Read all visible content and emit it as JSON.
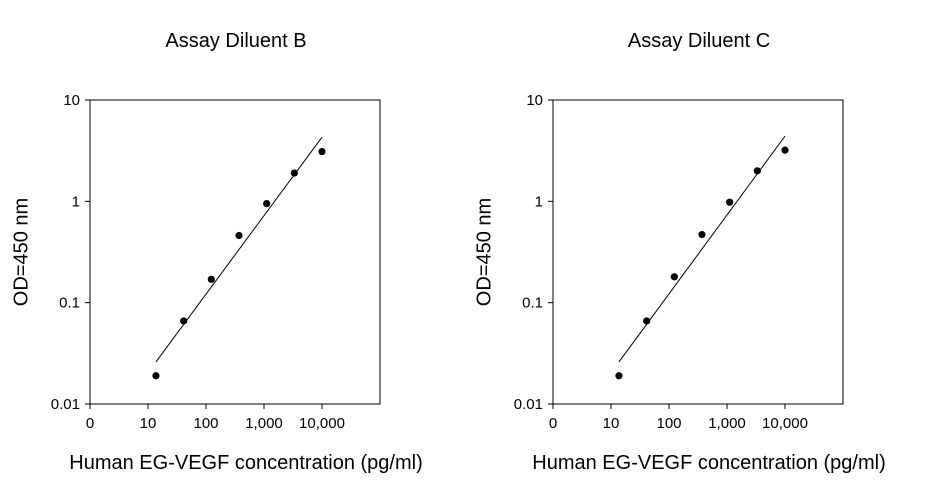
{
  "chart_data": [
    {
      "type": "scatter",
      "title": "Assay Diluent B",
      "xlabel": "Human EG-VEGF concentration (pg/ml)",
      "ylabel": "OD=450 nm",
      "x_scale": "log",
      "y_scale": "log",
      "xlim": [
        1,
        100000
      ],
      "ylim": [
        0.01,
        10
      ],
      "x_tick_labels": [
        "0",
        "10",
        "100",
        "1,000",
        "10,000"
      ],
      "y_tick_labels": [
        "0.01",
        "0.1",
        "1",
        "10"
      ],
      "grid": false,
      "series": [
        {
          "points": [
            {
              "x": 13.7,
              "y": 0.019
            },
            {
              "x": 41.2,
              "y": 0.066
            },
            {
              "x": 123.5,
              "y": 0.17
            },
            {
              "x": 370.4,
              "y": 0.46
            },
            {
              "x": 1111,
              "y": 0.95
            },
            {
              "x": 3333,
              "y": 1.9
            },
            {
              "x": 10000,
              "y": 3.1
            }
          ]
        }
      ],
      "fit_line": [
        {
          "x": 13.7,
          "y": 0.026
        },
        {
          "x": 10000,
          "y": 4.3
        }
      ]
    },
    {
      "type": "scatter",
      "title": "Assay Diluent C",
      "xlabel": "Human EG-VEGF concentration (pg/ml)",
      "ylabel": "OD=450 nm",
      "x_scale": "log",
      "y_scale": "log",
      "xlim": [
        1,
        100000
      ],
      "ylim": [
        0.01,
        10
      ],
      "x_tick_labels": [
        "0",
        "10",
        "100",
        "1,000",
        "10,000"
      ],
      "y_tick_labels": [
        "0.01",
        "0.1",
        "1",
        "10"
      ],
      "grid": false,
      "series": [
        {
          "points": [
            {
              "x": 13.7,
              "y": 0.019
            },
            {
              "x": 41.2,
              "y": 0.066
            },
            {
              "x": 123.5,
              "y": 0.18
            },
            {
              "x": 370.4,
              "y": 0.47
            },
            {
              "x": 1111,
              "y": 0.98
            },
            {
              "x": 3333,
              "y": 2.0
            },
            {
              "x": 10000,
              "y": 3.2
            }
          ]
        }
      ],
      "fit_line": [
        {
          "x": 13.7,
          "y": 0.026
        },
        {
          "x": 10000,
          "y": 4.4
        }
      ]
    }
  ]
}
